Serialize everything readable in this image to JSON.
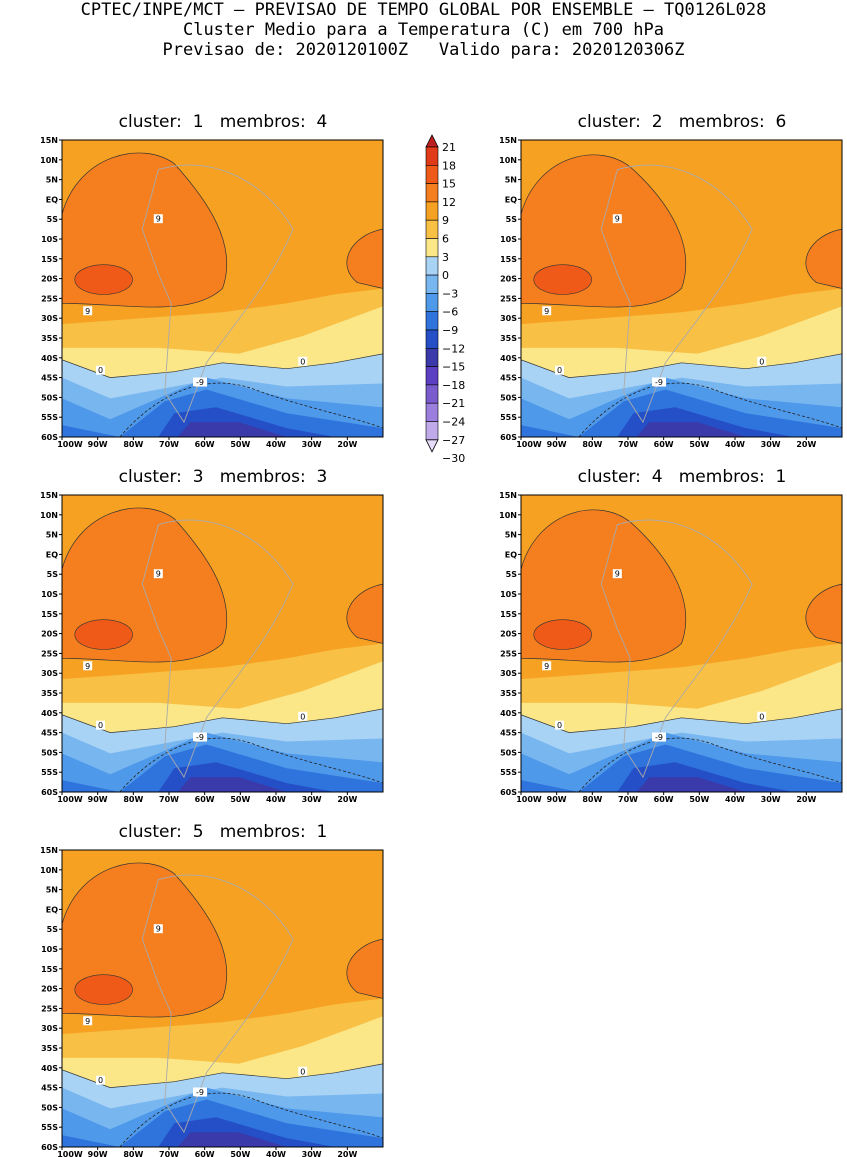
{
  "header": {
    "line1": "CPTEC/INPE/MCT — PREVISAO DE TEMPO GLOBAL POR ENSEMBLE — TQ0126L028",
    "line2": "Cluster Medio para a Temperatura (C) em 700 hPa",
    "line3": "Previsao de: 2020120100Z   Valido para: 2020120306Z"
  },
  "chart_data": {
    "type": "heatmap",
    "variable": "Temperatura (C) em 700 hPa",
    "lat_ticks": [
      "15N",
      "10N",
      "5N",
      "EQ",
      "5S",
      "10S",
      "15S",
      "20S",
      "25S",
      "30S",
      "35S",
      "40S",
      "45S",
      "50S",
      "55S",
      "60S"
    ],
    "lon_ticks": [
      "100W",
      "90W",
      "80W",
      "70W",
      "60W",
      "50W",
      "40W",
      "30W",
      "20W"
    ],
    "colorbar": {
      "levels": [
        21,
        18,
        15,
        12,
        9,
        6,
        3,
        0,
        -3,
        -6,
        -9,
        -12,
        -15,
        -18,
        -21,
        -24,
        -27,
        -30
      ],
      "colors": {
        "gt18": "#c01f1f",
        "15_18": "#e03a18",
        "12_15": "#f05a18",
        "9_12": "#f57e1e",
        "6_9": "#f7a123",
        "3_6": "#f9c046",
        "0_3": "#fbe788",
        "m3_0": "#a9d3f5",
        "m6_m3": "#78b6f0",
        "m9_m6": "#4f99ea",
        "m12_m9": "#2f73dd",
        "m15_m12": "#244fc6",
        "m18_m15": "#3a3aab",
        "m21_m18": "#5b3fc2",
        "m24_m21": "#7a5ccf",
        "m27_m24": "#9b7edd",
        "m30_m27": "#c0aaea",
        "lt_m30": "#e6dcf7"
      }
    },
    "clusters": [
      {
        "label": "cluster:  1   membros:  4",
        "cluster": 1,
        "members": 4
      },
      {
        "label": "cluster:  2   membros:  6",
        "cluster": 2,
        "members": 6
      },
      {
        "label": "cluster:  3   membros:  3",
        "cluster": 3,
        "members": 3
      },
      {
        "label": "cluster:  4   membros:  1",
        "cluster": 4,
        "members": 1
      },
      {
        "label": "cluster:  5   membros:  1",
        "cluster": 5,
        "members": 1
      }
    ],
    "contour_labels": [
      "9",
      "0",
      "-9"
    ]
  }
}
